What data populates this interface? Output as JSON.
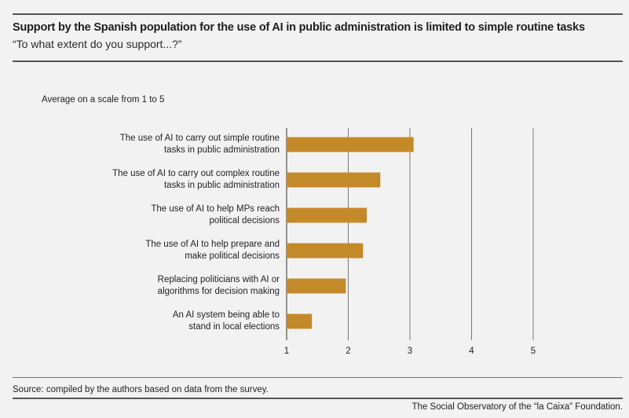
{
  "header": {
    "title": "Support by the Spanish population for the use of AI in public administration is limited to simple routine tasks",
    "subtitle": "“To what extent do you support...?”"
  },
  "scale_note": "Average on a scale from 1 to 5",
  "source": "Source: compiled by the authors based on data from the survey.",
  "footer": "The Social Observatory of the “la Caixa” Foundation.",
  "colors": {
    "bar": "#c48a2a",
    "grid": "#7a7a7a",
    "rule": "#555555",
    "background": "#f3f2f2"
  },
  "chart_data": {
    "type": "bar",
    "orientation": "horizontal",
    "title": "Support by the Spanish population for the use of AI in public administration is limited to simple routine tasks",
    "subtitle": "“To what extent do you support...?”",
    "xlabel": "Average on a scale from 1 to 5",
    "xlim": [
      1,
      5
    ],
    "xticks": [
      1,
      2,
      3,
      4,
      5
    ],
    "grid": true,
    "categories": [
      [
        "The use of AI to carry out simple routine",
        "tasks in public administration"
      ],
      [
        "The use of AI to carry out complex routine",
        "tasks in public administration"
      ],
      [
        "The use of AI to help MPs reach",
        "political decisions"
      ],
      [
        "The use of AI to help prepare and",
        "make political decisions"
      ],
      [
        "Replacing politicians with AI or",
        "algorithms for decision making"
      ],
      [
        "An AI system being able to",
        "stand in local elections"
      ]
    ],
    "values": [
      3.06,
      2.52,
      2.3,
      2.24,
      1.96,
      1.41
    ]
  }
}
